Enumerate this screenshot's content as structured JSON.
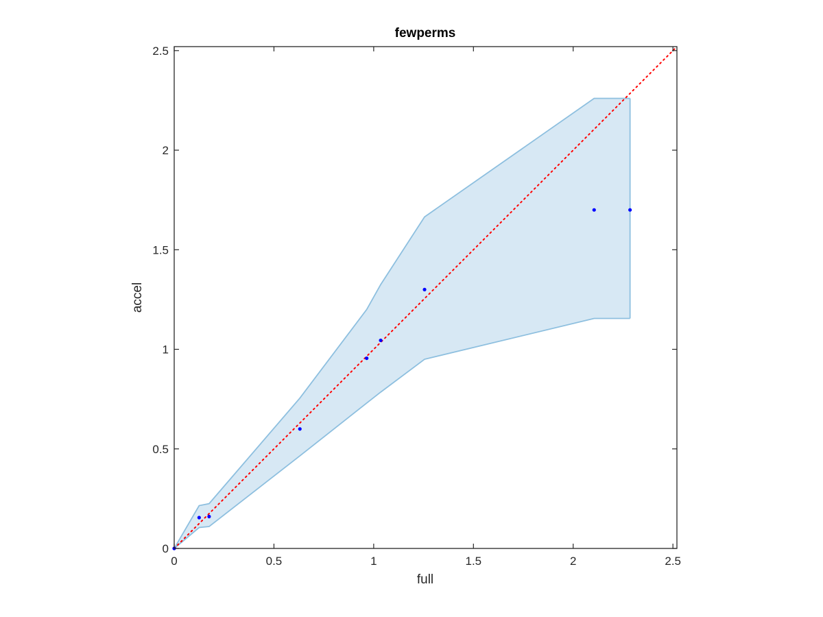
{
  "chart_data": {
    "type": "scatter",
    "title": "fewperms",
    "xlabel": "full",
    "ylabel": "accel",
    "xlim": [
      0,
      2.52
    ],
    "ylim": [
      0,
      2.52
    ],
    "xticks": [
      "0",
      "0.5",
      "1",
      "1.5",
      "2",
      "2.5"
    ],
    "yticks": [
      "0",
      "0.5",
      "1",
      "1.5",
      "2",
      "2.5"
    ],
    "grid": false,
    "legend": "none",
    "points": {
      "x": [
        0,
        0.125,
        0.175,
        0.63,
        0.965,
        1.035,
        1.255,
        2.105,
        2.285
      ],
      "y": [
        0,
        0.155,
        0.16,
        0.6,
        0.955,
        1.045,
        1.3,
        1.7,
        1.7
      ]
    },
    "band": {
      "x": [
        0,
        0.125,
        0.175,
        0.63,
        0.965,
        1.035,
        1.255,
        2.105,
        2.285
      ],
      "upper": [
        0,
        0.215,
        0.225,
        0.755,
        1.2,
        1.325,
        1.665,
        2.26,
        2.26
      ],
      "lower": [
        0,
        0.105,
        0.11,
        0.465,
        0.73,
        0.785,
        0.95,
        1.155,
        1.155
      ]
    },
    "reference_line": {
      "type": "y=x",
      "style": "dotted"
    },
    "colors": {
      "points": "#0000ff",
      "band_fill": "#d7e8f4",
      "band_edge": "#8dbfdf",
      "reference_line": "#ff0000",
      "axes": "#262626"
    }
  }
}
